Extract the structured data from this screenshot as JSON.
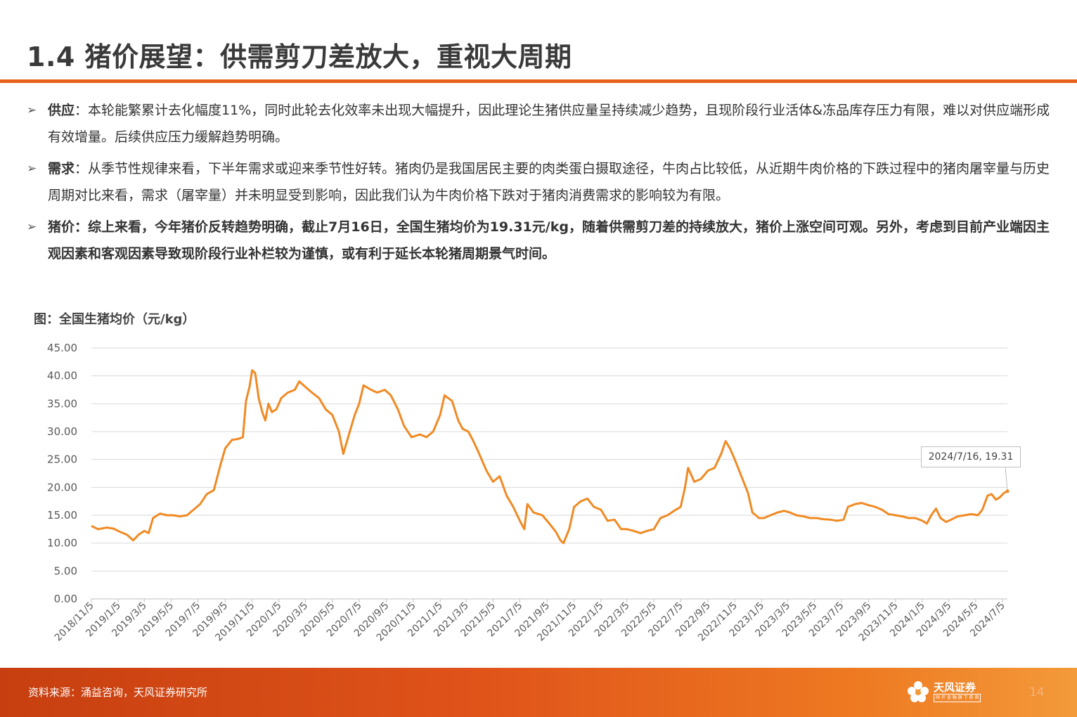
{
  "header": {
    "title": "1.4 猪价展望：供需剪刀差放大，重视大周期"
  },
  "bullets": [
    {
      "lead": "供应",
      "text": "：本轮能繁累计去化幅度11%，同时此轮去化效率未出现大幅提升，因此理论生猪供应量呈持续减少趋势，且现阶段行业活体&冻品库存压力有限，难以对供应端形成有效增量。后续供应压力缓解趋势明确。"
    },
    {
      "lead": "需求",
      "text": "：从季节性规律来看，下半年需求或迎来季节性好转。猪肉仍是我国居民主要的肉类蛋白摄取途径，牛肉占比较低，从近期牛肉价格的下跌过程中的猪肉屠宰量与历史周期对比来看，需求（屠宰量）并未明显受到影响，因此我们认为牛肉价格下跌对于猪肉消费需求的影响较为有限。"
    },
    {
      "lead": "猪价",
      "text": "：综上来看，今年猪价反转趋势明确，截止7月16日，全国生猪均价为19.31元/kg，随着供需剪刀差的持续放大，猪价上涨空间可观。另外，考虑到目前产业端因主观因素和客观因素导致现阶段行业补栏较为谨慎，或有利于延长本轮猪周期景气时间。"
    }
  ],
  "chart_title": "图：全国生猪均价（元/kg）",
  "footer": {
    "source": "资料来源：涌益咨询，天风证券研究所",
    "logo_name": "天风证券",
    "logo_sub": "国 开 金 融 旗 下 券 商",
    "page": "14"
  },
  "colors": {
    "accent": "#e8601c",
    "line": "#f08a24"
  },
  "chart_data": {
    "type": "line",
    "title": "",
    "xlabel": "",
    "ylabel": "",
    "ylim": [
      0,
      45
    ],
    "yticks": [
      "0.00",
      "5.00",
      "10.00",
      "15.00",
      "20.00",
      "25.00",
      "30.00",
      "35.00",
      "40.00",
      "45.00"
    ],
    "xticks": [
      "2018/11/5",
      "2019/1/5",
      "2019/3/5",
      "2019/5/5",
      "2019/7/5",
      "2019/9/5",
      "2019/11/5",
      "2020/1/5",
      "2020/3/5",
      "2020/5/5",
      "2020/7/5",
      "2020/9/5",
      "2020/11/5",
      "2021/1/5",
      "2021/3/5",
      "2021/5/5",
      "2021/7/5",
      "2021/9/5",
      "2021/11/5",
      "2022/1/5",
      "2022/3/5",
      "2022/5/5",
      "2022/7/5",
      "2022/9/5",
      "2022/11/5",
      "2023/1/5",
      "2023/3/5",
      "2023/5/5",
      "2023/7/5",
      "2023/9/5",
      "2023/11/5",
      "2024/1/5",
      "2024/3/5",
      "2024/5/5",
      "2024/7/5"
    ],
    "grid": true,
    "series": [
      {
        "name": "",
        "points": [
          [
            "2018/11/5",
            13.1
          ],
          [
            "2018/11/20",
            12.5
          ],
          [
            "2018/12/10",
            12.8
          ],
          [
            "2018/12/25",
            12.6
          ],
          [
            "2019/1/10",
            12.0
          ],
          [
            "2019/1/25",
            11.5
          ],
          [
            "2019/2/8",
            10.5
          ],
          [
            "2019/2/20",
            11.5
          ],
          [
            "2019/3/5",
            12.2
          ],
          [
            "2019/3/15",
            11.8
          ],
          [
            "2019/3/25",
            14.5
          ],
          [
            "2019/4/10",
            15.3
          ],
          [
            "2019/4/25",
            15.0
          ],
          [
            "2019/5/10",
            15.0
          ],
          [
            "2019/5/25",
            14.8
          ],
          [
            "2019/6/10",
            15.0
          ],
          [
            "2019/6/25",
            16.0
          ],
          [
            "2019/7/10",
            17.0
          ],
          [
            "2019/7/25",
            18.8
          ],
          [
            "2019/8/10",
            19.5
          ],
          [
            "2019/8/25",
            24.0
          ],
          [
            "2019/9/5",
            27.0
          ],
          [
            "2019/9/20",
            28.5
          ],
          [
            "2019/10/5",
            28.7
          ],
          [
            "2019/10/15",
            29.0
          ],
          [
            "2019/10/22",
            35.5
          ],
          [
            "2019/10/30",
            38.0
          ],
          [
            "2019/11/5",
            41.0
          ],
          [
            "2019/11/12",
            40.5
          ],
          [
            "2019/11/20",
            36.0
          ],
          [
            "2019/11/28",
            33.5
          ],
          [
            "2019/12/5",
            32.0
          ],
          [
            "2019/12/12",
            35.0
          ],
          [
            "2019/12/20",
            33.5
          ],
          [
            "2019/12/30",
            34.0
          ],
          [
            "2020/1/10",
            36.0
          ],
          [
            "2020/1/25",
            37.0
          ],
          [
            "2020/2/10",
            37.5
          ],
          [
            "2020/2/20",
            39.0
          ],
          [
            "2020/3/5",
            38.0
          ],
          [
            "2020/3/20",
            37.0
          ],
          [
            "2020/4/5",
            36.0
          ],
          [
            "2020/4/20",
            34.0
          ],
          [
            "2020/5/5",
            33.0
          ],
          [
            "2020/5/20",
            30.0
          ],
          [
            "2020/5/30",
            26.0
          ],
          [
            "2020/6/10",
            29.0
          ],
          [
            "2020/6/25",
            33.0
          ],
          [
            "2020/7/5",
            35.0
          ],
          [
            "2020/7/15",
            38.3
          ],
          [
            "2020/8/1",
            37.5
          ],
          [
            "2020/8/15",
            37.0
          ],
          [
            "2020/9/1",
            37.5
          ],
          [
            "2020/9/15",
            36.5
          ],
          [
            "2020/10/1",
            34.0
          ],
          [
            "2020/10/15",
            31.0
          ],
          [
            "2020/11/1",
            29.0
          ],
          [
            "2020/11/20",
            29.5
          ],
          [
            "2020/12/5",
            29.0
          ],
          [
            "2020/12/20",
            30.0
          ],
          [
            "2021/1/5",
            33.0
          ],
          [
            "2021/1/15",
            36.5
          ],
          [
            "2021/2/1",
            35.5
          ],
          [
            "2021/2/15",
            32.0
          ],
          [
            "2021/2/25",
            30.5
          ],
          [
            "2021/3/10",
            30.0
          ],
          [
            "2021/3/20",
            28.5
          ],
          [
            "2021/4/1",
            26.5
          ],
          [
            "2021/4/20",
            23.0
          ],
          [
            "2021/5/5",
            21.0
          ],
          [
            "2021/5/20",
            22.0
          ],
          [
            "2021/6/5",
            18.5
          ],
          [
            "2021/6/20",
            16.5
          ],
          [
            "2021/7/5",
            14.0
          ],
          [
            "2021/7/15",
            12.5
          ],
          [
            "2021/7/22",
            17.0
          ],
          [
            "2021/8/5",
            15.5
          ],
          [
            "2021/8/25",
            15.0
          ],
          [
            "2021/9/10",
            13.5
          ],
          [
            "2021/9/25",
            12.0
          ],
          [
            "2021/10/5",
            10.5
          ],
          [
            "2021/10/12",
            10.0
          ],
          [
            "2021/10/25",
            12.5
          ],
          [
            "2021/11/5",
            16.5
          ],
          [
            "2021/11/20",
            17.5
          ],
          [
            "2021/12/5",
            18.0
          ],
          [
            "2021/12/20",
            16.5
          ],
          [
            "2022/1/5",
            16.0
          ],
          [
            "2022/1/20",
            14.0
          ],
          [
            "2022/2/5",
            14.2
          ],
          [
            "2022/2/20",
            12.5
          ],
          [
            "2022/3/5",
            12.5
          ],
          [
            "2022/3/20",
            12.2
          ],
          [
            "2022/4/5",
            11.8
          ],
          [
            "2022/4/20",
            12.2
          ],
          [
            "2022/5/5",
            12.5
          ],
          [
            "2022/5/20",
            14.5
          ],
          [
            "2022/6/5",
            15.0
          ],
          [
            "2022/6/20",
            15.8
          ],
          [
            "2022/7/5",
            16.5
          ],
          [
            "2022/7/15",
            20.0
          ],
          [
            "2022/7/22",
            23.5
          ],
          [
            "2022/8/5",
            21.0
          ],
          [
            "2022/8/20",
            21.5
          ],
          [
            "2022/9/5",
            23.0
          ],
          [
            "2022/9/20",
            23.5
          ],
          [
            "2022/10/5",
            26.0
          ],
          [
            "2022/10/15",
            28.3
          ],
          [
            "2022/10/25",
            27.0
          ],
          [
            "2022/11/5",
            25.0
          ],
          [
            "2022/11/20",
            22.0
          ],
          [
            "2022/12/5",
            19.0
          ],
          [
            "2022/12/15",
            15.5
          ],
          [
            "2022/12/30",
            14.5
          ],
          [
            "2023/1/10",
            14.5
          ],
          [
            "2023/1/25",
            15.0
          ],
          [
            "2023/2/10",
            15.5
          ],
          [
            "2023/2/25",
            15.8
          ],
          [
            "2023/3/10",
            15.5
          ],
          [
            "2023/3/25",
            15.0
          ],
          [
            "2023/4/10",
            14.8
          ],
          [
            "2023/4/25",
            14.5
          ],
          [
            "2023/5/10",
            14.5
          ],
          [
            "2023/5/25",
            14.3
          ],
          [
            "2023/6/10",
            14.2
          ],
          [
            "2023/6/25",
            14.0
          ],
          [
            "2023/7/10",
            14.2
          ],
          [
            "2023/7/20",
            16.5
          ],
          [
            "2023/8/5",
            17.0
          ],
          [
            "2023/8/20",
            17.2
          ],
          [
            "2023/9/5",
            16.8
          ],
          [
            "2023/9/20",
            16.5
          ],
          [
            "2023/10/5",
            16.0
          ],
          [
            "2023/10/20",
            15.2
          ],
          [
            "2023/11/5",
            15.0
          ],
          [
            "2023/11/20",
            14.8
          ],
          [
            "2023/12/5",
            14.5
          ],
          [
            "2023/12/20",
            14.5
          ],
          [
            "2024/1/5",
            14.0
          ],
          [
            "2024/1/15",
            13.5
          ],
          [
            "2024/1/25",
            15.0
          ],
          [
            "2024/2/5",
            16.2
          ],
          [
            "2024/2/15",
            14.5
          ],
          [
            "2024/2/28",
            13.8
          ],
          [
            "2024/3/10",
            14.2
          ],
          [
            "2024/3/25",
            14.8
          ],
          [
            "2024/4/10",
            15.0
          ],
          [
            "2024/4/25",
            15.2
          ],
          [
            "2024/5/10",
            15.0
          ],
          [
            "2024/5/20",
            16.0
          ],
          [
            "2024/6/1",
            18.5
          ],
          [
            "2024/6/10",
            18.8
          ],
          [
            "2024/6/20",
            17.8
          ],
          [
            "2024/6/30",
            18.3
          ],
          [
            "2024/7/8",
            19.0
          ],
          [
            "2024/7/16",
            19.31
          ]
        ]
      }
    ],
    "annotation": {
      "label": "2024/7/16, 19.31",
      "x": "2024/7/16",
      "y": 19.31
    }
  }
}
